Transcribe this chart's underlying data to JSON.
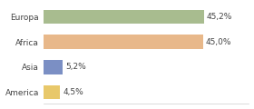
{
  "categories": [
    "Europa",
    "Africa",
    "Asia",
    "America"
  ],
  "values": [
    45.2,
    45.0,
    5.2,
    4.5
  ],
  "labels": [
    "45,2%",
    "45,0%",
    "5,2%",
    "4,5%"
  ],
  "bar_colors": [
    "#a8bc8f",
    "#e8b88a",
    "#7b8fc4",
    "#e8c86a"
  ],
  "background_color": "#ffffff",
  "xlim": [
    0,
    58
  ],
  "label_fontsize": 6.5,
  "category_fontsize": 6.5,
  "bar_height": 0.55
}
